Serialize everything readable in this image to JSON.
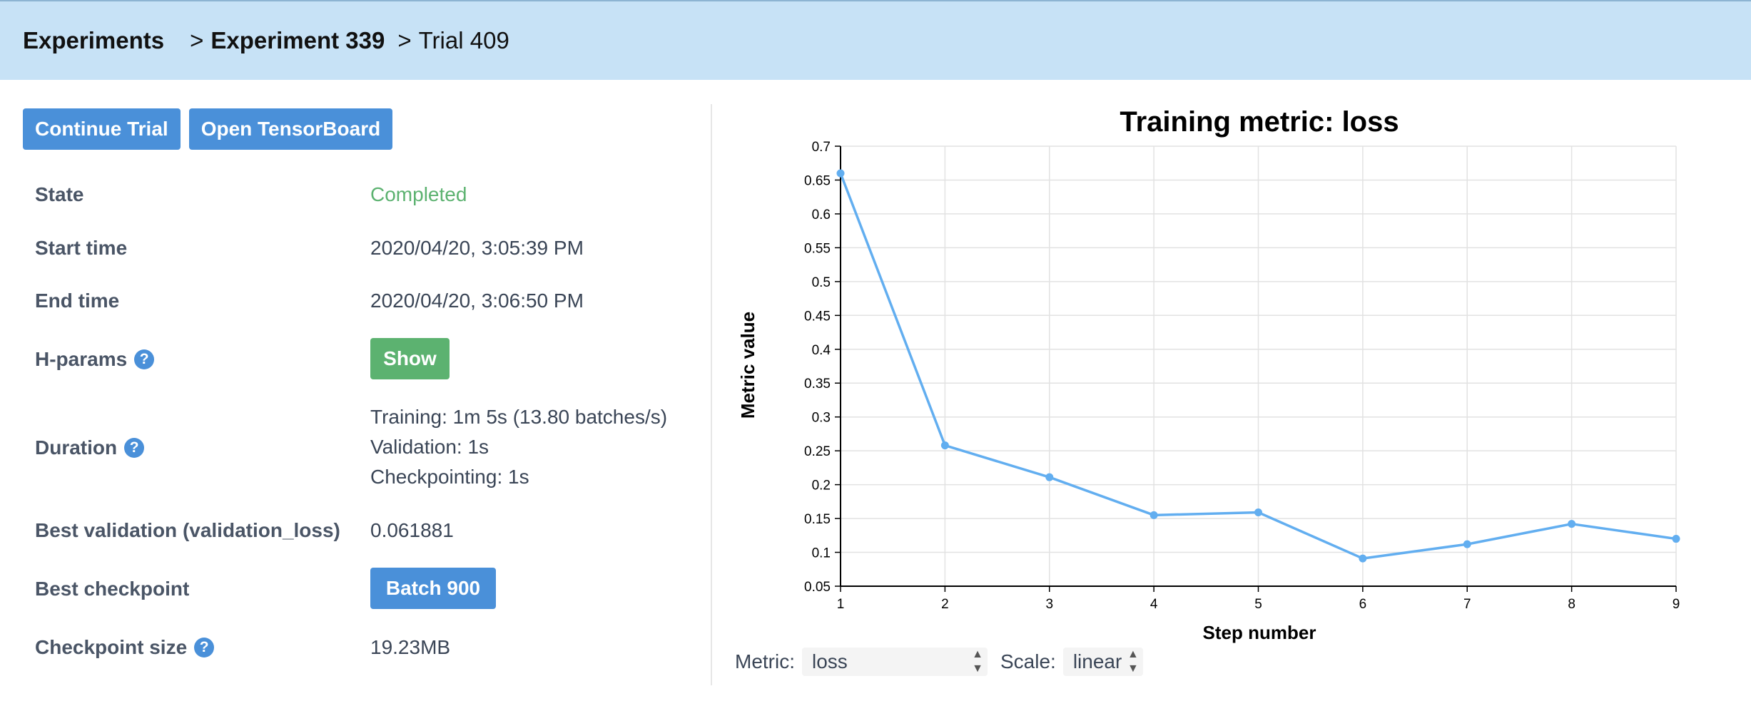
{
  "breadcrumb": {
    "experiments": "Experiments",
    "sep1": ">",
    "experiment": "Experiment 339",
    "sep2": ">",
    "trial": "Trial 409"
  },
  "actions": {
    "continue_trial": "Continue Trial",
    "open_tensorboard": "Open TensorBoard"
  },
  "info": {
    "state_label": "State",
    "state_value": "Completed",
    "start_label": "Start time",
    "start_value": "2020/04/20, 3:05:39 PM",
    "end_label": "End time",
    "end_value": "2020/04/20, 3:06:50 PM",
    "hparams_label": "H-params",
    "hparams_button": "Show",
    "duration_label": "Duration",
    "duration_training": "Training: 1m 5s (13.80 batches/s)",
    "duration_validation": "Validation: 1s",
    "duration_checkpointing": "Checkpointing: 1s",
    "best_validation_label": "Best validation (validation_loss)",
    "best_validation_value": "0.061881",
    "best_checkpoint_label": "Best checkpoint",
    "best_checkpoint_button": "Batch 900",
    "checkpoint_size_label": "Checkpoint size",
    "checkpoint_size_value": "19.23MB",
    "help_glyph": "?"
  },
  "controls": {
    "metric_label": "Metric:",
    "metric_value": "loss",
    "scale_label": "Scale:",
    "scale_value": "linear"
  },
  "colors": {
    "accent": "#4a90d9",
    "success": "#5cb270",
    "line": "#62aef0",
    "header_bg": "#c7e2f6"
  },
  "chart_data": {
    "type": "line",
    "title": "Training metric: loss",
    "xlabel": "Step number",
    "ylabel": "Metric value",
    "x": [
      1,
      2,
      3,
      4,
      5,
      6,
      7,
      8,
      9
    ],
    "series": [
      {
        "values": [
          0.66,
          0.258,
          0.211,
          0.155,
          0.159,
          0.091,
          0.112,
          0.142,
          0.12
        ]
      }
    ],
    "xlim": [
      1,
      9
    ],
    "ylim": [
      0.05,
      0.7
    ],
    "xticks": [
      "1",
      "2",
      "3",
      "4",
      "5",
      "6",
      "7",
      "8",
      "9"
    ],
    "yticks": [
      "0.05",
      "0.1",
      "0.15",
      "0.2",
      "0.25",
      "0.3",
      "0.35",
      "0.4",
      "0.45",
      "0.5",
      "0.55",
      "0.6",
      "0.65",
      "0.7"
    ],
    "grid": true
  }
}
